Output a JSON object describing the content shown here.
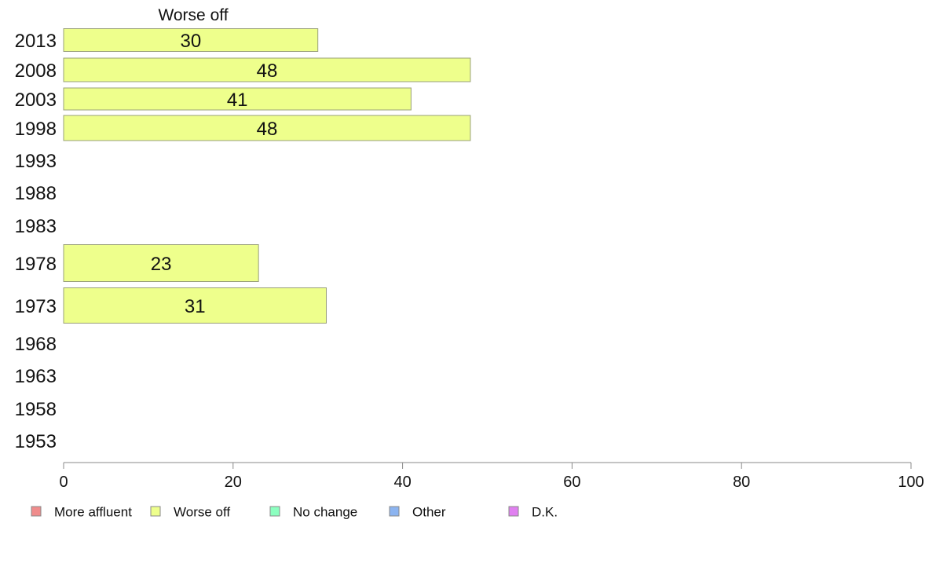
{
  "chart_data": {
    "type": "bar",
    "orientation": "horizontal",
    "stacked": true,
    "column_header": "Worse off",
    "categories": [
      "2013",
      "2008",
      "2003",
      "1998",
      "1993",
      "1988",
      "1983",
      "1978",
      "1973",
      "1968",
      "1963",
      "1958",
      "1953"
    ],
    "series": [
      {
        "name": "More affluent",
        "color": "#f08c8c",
        "values": [
          null,
          null,
          null,
          null,
          null,
          null,
          null,
          null,
          null,
          null,
          null,
          null,
          null
        ]
      },
      {
        "name": "Worse off",
        "color": "#eeff8c",
        "values": [
          30,
          48,
          41,
          48,
          null,
          null,
          null,
          23,
          31,
          null,
          null,
          null,
          null
        ]
      },
      {
        "name": "No change",
        "color": "#8cffc0",
        "values": [
          null,
          null,
          null,
          null,
          null,
          null,
          null,
          null,
          null,
          null,
          null,
          null,
          null
        ]
      },
      {
        "name": "Other",
        "color": "#8cb4f0",
        "values": [
          null,
          null,
          null,
          null,
          null,
          null,
          null,
          null,
          null,
          null,
          null,
          null,
          null
        ]
      },
      {
        "name": "D.K.",
        "color": "#e080f0",
        "values": [
          null,
          null,
          null,
          null,
          null,
          null,
          null,
          null,
          null,
          null,
          null,
          null,
          null
        ]
      }
    ],
    "xlim": [
      0,
      100
    ],
    "xticks": [
      "0",
      "20",
      "40",
      "60",
      "80",
      "100"
    ],
    "grid": false,
    "legend_position": "bottom"
  }
}
